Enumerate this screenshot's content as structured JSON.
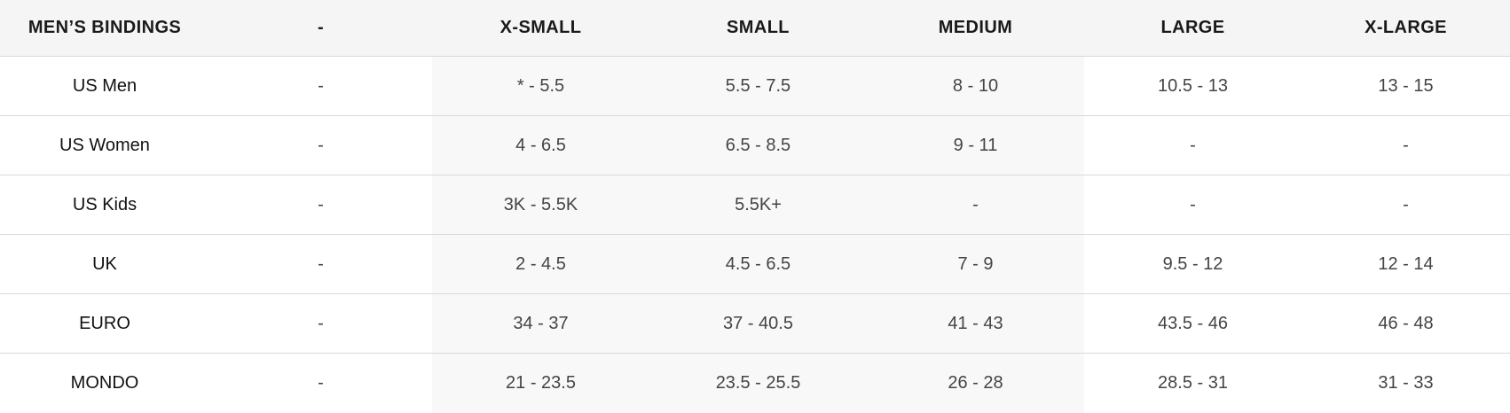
{
  "table": {
    "headers": [
      "MEN’S BINDINGS",
      "-",
      "X-SMALL",
      "SMALL",
      "MEDIUM",
      "LARGE",
      "X-LARGE"
    ],
    "rows": [
      {
        "label": "US Men",
        "cells": [
          "-",
          "* - 5.5",
          "5.5 - 7.5",
          "8 - 10",
          "10.5 - 13",
          "13 - 15"
        ]
      },
      {
        "label": "US Women",
        "cells": [
          "-",
          "4 - 6.5",
          "6.5 - 8.5",
          "9 - 11",
          "-",
          "-"
        ]
      },
      {
        "label": "US Kids",
        "cells": [
          "-",
          "3K - 5.5K",
          "5.5K+",
          "-",
          "-",
          "-"
        ]
      },
      {
        "label": "UK",
        "cells": [
          "-",
          "2 - 4.5",
          "4.5 - 6.5",
          "7 - 9",
          "9.5 - 12",
          "12 - 14"
        ]
      },
      {
        "label": "EURO",
        "cells": [
          "-",
          "34 - 37",
          "37 - 40.5",
          "41 - 43",
          "43.5 - 46",
          "46 - 48"
        ]
      },
      {
        "label": "MONDO",
        "cells": [
          "-",
          "21 - 23.5",
          "23.5 - 25.5",
          "26 - 28",
          "28.5 - 31",
          "31 - 33"
        ]
      }
    ]
  }
}
